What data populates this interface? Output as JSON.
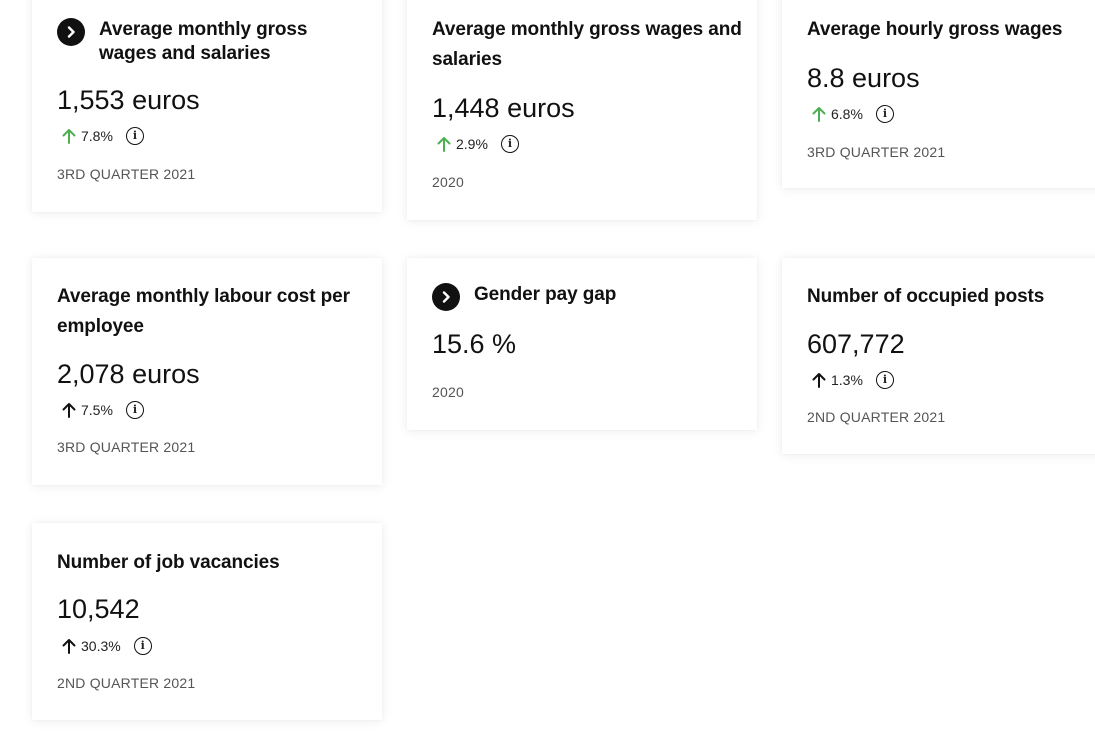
{
  "colors": {
    "arrow_up_green": "#4caf50",
    "arrow_up_black": "#111111",
    "chevron_bg": "#111111"
  },
  "cards": [
    {
      "title": "Average monthly gross wages and salaries",
      "value": "1,553 euros",
      "change": "7.8%",
      "arrow_color": "green",
      "period": "3RD QUARTER 2021",
      "has_link_icon": true,
      "info_icon": "info-icon"
    },
    {
      "title": "Average monthly gross wages and salaries",
      "value": "1,448 euros",
      "change": "2.9%",
      "arrow_color": "green",
      "period": "2020",
      "has_link_icon": false,
      "info_icon": "info-icon"
    },
    {
      "title": "Average hourly gross wages",
      "value": "8.8 euros",
      "change": "6.8%",
      "arrow_color": "green",
      "period": "3RD QUARTER 2021",
      "has_link_icon": false,
      "info_icon": "info-icon"
    },
    {
      "title": "Average monthly labour cost per employee",
      "value": "2,078 euros",
      "change": "7.5%",
      "arrow_color": "black",
      "period": "3RD QUARTER 2021",
      "has_link_icon": false,
      "info_icon": "info-icon"
    },
    {
      "title": "Gender pay gap",
      "value": "15.6 %",
      "period": "2020",
      "has_link_icon": true
    },
    {
      "title": "Number of occupied posts",
      "value": "607,772",
      "change": "1.3%",
      "arrow_color": "black",
      "period": "2ND QUARTER 2021",
      "has_link_icon": false,
      "info_icon": "info-icon"
    },
    {
      "title": "Number of job vacancies",
      "value": "10,542",
      "change": "30.3%",
      "arrow_color": "black",
      "period": "2ND QUARTER 2021",
      "has_link_icon": false,
      "info_icon": "info-icon"
    }
  ]
}
